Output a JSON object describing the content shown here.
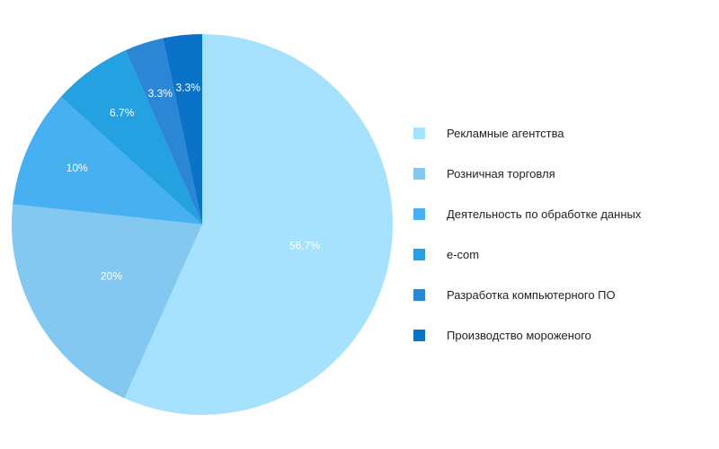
{
  "chart_data": {
    "type": "pie",
    "title": "",
    "legend_position": "right",
    "slices": [
      {
        "name": "Рекламные агентства",
        "value": 56.7,
        "label": "56,7%",
        "color": "#a6e1fd"
      },
      {
        "name": "Розничная торговля",
        "value": 20,
        "label": "20%",
        "color": "#82c8f0"
      },
      {
        "name": "Деятельность по обработке данных",
        "value": 10,
        "label": "10%",
        "color": "#47b0f0"
      },
      {
        "name": "e-com",
        "value": 6.7,
        "label": "6.7%",
        "color": "#23a1e1"
      },
      {
        "name": "Разработка компьютерного ПО",
        "value": 3.3,
        "label": "3.3%",
        "color": "#2b87d6"
      },
      {
        "name": "Производство мороженого",
        "value": 3.3,
        "label": "3.3%",
        "color": "#0b73c7"
      }
    ]
  }
}
